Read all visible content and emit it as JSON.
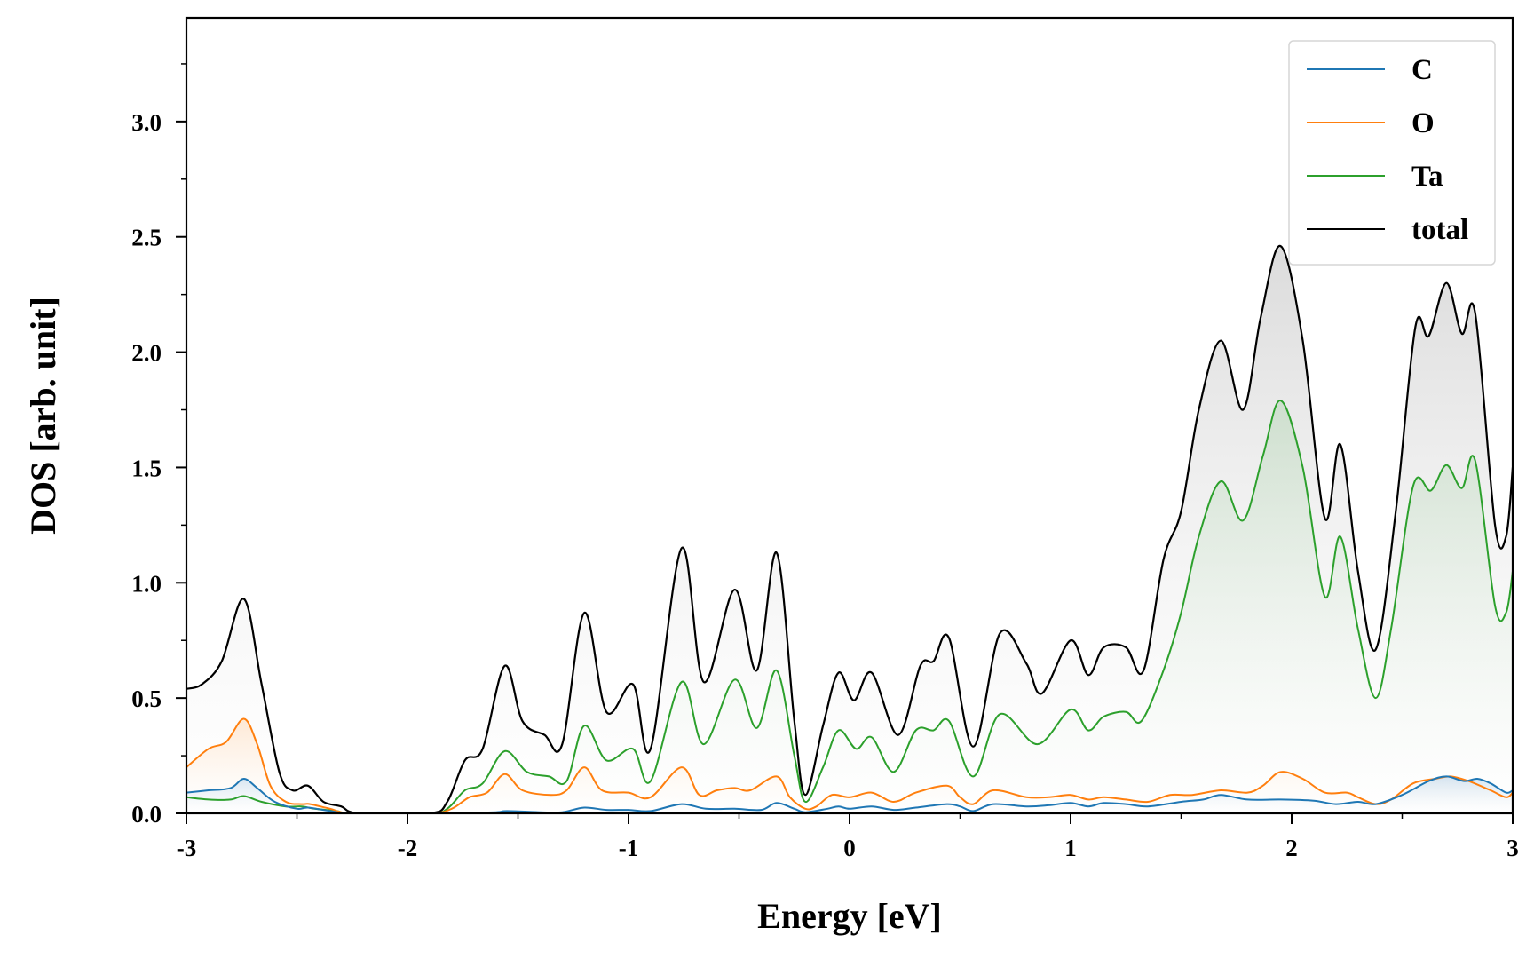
{
  "chart_data": {
    "type": "line",
    "title": "",
    "xlabel": "Energy [eV]",
    "ylabel": "DOS [arb. unit]",
    "xlim": [
      -3,
      3
    ],
    "ylim": [
      0,
      3.45
    ],
    "x_ticks": [
      -3,
      -2,
      -1,
      0,
      1,
      2,
      3
    ],
    "x_tick_labels": [
      "-3",
      "-2",
      "-1",
      "0",
      "1",
      "2",
      "3"
    ],
    "y_ticks": [
      0.0,
      0.5,
      1.0,
      1.5,
      2.0,
      2.5,
      3.0
    ],
    "y_tick_labels": [
      "0.0",
      "0.5",
      "1.0",
      "1.5",
      "2.0",
      "2.5",
      "3.0"
    ],
    "grid": false,
    "legend_position": "top-right",
    "series": [
      {
        "name": "C",
        "color": "#1f77b4",
        "points": [
          [
            -3.0,
            0.09
          ],
          [
            -2.9,
            0.1
          ],
          [
            -2.8,
            0.11
          ],
          [
            -2.74,
            0.15
          ],
          [
            -2.68,
            0.11
          ],
          [
            -2.6,
            0.05
          ],
          [
            -2.5,
            0.02
          ],
          [
            -2.45,
            0.025
          ],
          [
            -2.35,
            0.01
          ],
          [
            -2.25,
            0.0
          ],
          [
            -1.9,
            0.0
          ],
          [
            -1.8,
            0.0
          ],
          [
            -1.6,
            0.005
          ],
          [
            -1.55,
            0.01
          ],
          [
            -1.4,
            0.005
          ],
          [
            -1.3,
            0.005
          ],
          [
            -1.2,
            0.025
          ],
          [
            -1.1,
            0.015
          ],
          [
            -1.0,
            0.015
          ],
          [
            -0.9,
            0.01
          ],
          [
            -0.76,
            0.04
          ],
          [
            -0.65,
            0.02
          ],
          [
            -0.52,
            0.02
          ],
          [
            -0.4,
            0.015
          ],
          [
            -0.33,
            0.045
          ],
          [
            -0.25,
            0.02
          ],
          [
            -0.2,
            0.005
          ],
          [
            -0.1,
            0.02
          ],
          [
            -0.05,
            0.03
          ],
          [
            0.0,
            0.02
          ],
          [
            0.1,
            0.03
          ],
          [
            0.2,
            0.015
          ],
          [
            0.3,
            0.025
          ],
          [
            0.44,
            0.04
          ],
          [
            0.5,
            0.03
          ],
          [
            0.56,
            0.01
          ],
          [
            0.65,
            0.04
          ],
          [
            0.8,
            0.03
          ],
          [
            0.9,
            0.035
          ],
          [
            1.0,
            0.045
          ],
          [
            1.08,
            0.03
          ],
          [
            1.15,
            0.045
          ],
          [
            1.25,
            0.04
          ],
          [
            1.35,
            0.03
          ],
          [
            1.5,
            0.05
          ],
          [
            1.6,
            0.06
          ],
          [
            1.68,
            0.08
          ],
          [
            1.8,
            0.06
          ],
          [
            1.95,
            0.06
          ],
          [
            2.1,
            0.055
          ],
          [
            2.2,
            0.04
          ],
          [
            2.3,
            0.05
          ],
          [
            2.38,
            0.04
          ],
          [
            2.5,
            0.08
          ],
          [
            2.62,
            0.14
          ],
          [
            2.7,
            0.16
          ],
          [
            2.78,
            0.14
          ],
          [
            2.84,
            0.15
          ],
          [
            2.9,
            0.13
          ],
          [
            2.97,
            0.09
          ],
          [
            3.0,
            0.1
          ]
        ]
      },
      {
        "name": "O",
        "color": "#ff7f0e",
        "points": [
          [
            -3.0,
            0.2
          ],
          [
            -2.9,
            0.28
          ],
          [
            -2.82,
            0.31
          ],
          [
            -2.74,
            0.41
          ],
          [
            -2.68,
            0.3
          ],
          [
            -2.62,
            0.12
          ],
          [
            -2.55,
            0.05
          ],
          [
            -2.48,
            0.04
          ],
          [
            -2.44,
            0.04
          ],
          [
            -2.35,
            0.02
          ],
          [
            -2.25,
            0.0
          ],
          [
            -1.9,
            0.0
          ],
          [
            -1.8,
            0.02
          ],
          [
            -1.72,
            0.07
          ],
          [
            -1.64,
            0.09
          ],
          [
            -1.56,
            0.17
          ],
          [
            -1.48,
            0.1
          ],
          [
            -1.35,
            0.08
          ],
          [
            -1.28,
            0.1
          ],
          [
            -1.2,
            0.2
          ],
          [
            -1.12,
            0.1
          ],
          [
            -1.0,
            0.09
          ],
          [
            -0.9,
            0.07
          ],
          [
            -0.76,
            0.2
          ],
          [
            -0.68,
            0.08
          ],
          [
            -0.6,
            0.1
          ],
          [
            -0.52,
            0.11
          ],
          [
            -0.45,
            0.1
          ],
          [
            -0.33,
            0.16
          ],
          [
            -0.27,
            0.07
          ],
          [
            -0.2,
            0.02
          ],
          [
            -0.15,
            0.03
          ],
          [
            -0.08,
            0.08
          ],
          [
            0.0,
            0.07
          ],
          [
            0.1,
            0.09
          ],
          [
            0.2,
            0.05
          ],
          [
            0.3,
            0.09
          ],
          [
            0.44,
            0.12
          ],
          [
            0.5,
            0.07
          ],
          [
            0.56,
            0.04
          ],
          [
            0.65,
            0.1
          ],
          [
            0.8,
            0.07
          ],
          [
            0.9,
            0.07
          ],
          [
            1.0,
            0.08
          ],
          [
            1.08,
            0.06
          ],
          [
            1.15,
            0.07
          ],
          [
            1.25,
            0.06
          ],
          [
            1.35,
            0.05
          ],
          [
            1.45,
            0.08
          ],
          [
            1.55,
            0.08
          ],
          [
            1.68,
            0.1
          ],
          [
            1.8,
            0.09
          ],
          [
            1.87,
            0.12
          ],
          [
            1.95,
            0.18
          ],
          [
            2.05,
            0.15
          ],
          [
            2.15,
            0.09
          ],
          [
            2.25,
            0.09
          ],
          [
            2.3,
            0.07
          ],
          [
            2.38,
            0.04
          ],
          [
            2.45,
            0.06
          ],
          [
            2.55,
            0.13
          ],
          [
            2.65,
            0.15
          ],
          [
            2.72,
            0.16
          ],
          [
            2.8,
            0.14
          ],
          [
            2.9,
            0.1
          ],
          [
            2.97,
            0.07
          ],
          [
            3.0,
            0.09
          ]
        ]
      },
      {
        "name": "Ta",
        "color": "#2ca02c",
        "points": [
          [
            -3.0,
            0.07
          ],
          [
            -2.9,
            0.06
          ],
          [
            -2.8,
            0.06
          ],
          [
            -2.74,
            0.075
          ],
          [
            -2.66,
            0.05
          ],
          [
            -2.55,
            0.03
          ],
          [
            -2.48,
            0.03
          ],
          [
            -2.42,
            0.02
          ],
          [
            -2.32,
            0.01
          ],
          [
            -2.25,
            0.0
          ],
          [
            -1.9,
            0.0
          ],
          [
            -1.82,
            0.02
          ],
          [
            -1.74,
            0.1
          ],
          [
            -1.66,
            0.13
          ],
          [
            -1.56,
            0.27
          ],
          [
            -1.46,
            0.18
          ],
          [
            -1.36,
            0.16
          ],
          [
            -1.28,
            0.14
          ],
          [
            -1.2,
            0.38
          ],
          [
            -1.1,
            0.23
          ],
          [
            -0.98,
            0.28
          ],
          [
            -0.9,
            0.14
          ],
          [
            -0.76,
            0.57
          ],
          [
            -0.66,
            0.3
          ],
          [
            -0.52,
            0.58
          ],
          [
            -0.42,
            0.37
          ],
          [
            -0.33,
            0.62
          ],
          [
            -0.25,
            0.25
          ],
          [
            -0.2,
            0.05
          ],
          [
            -0.12,
            0.2
          ],
          [
            -0.05,
            0.36
          ],
          [
            0.03,
            0.28
          ],
          [
            0.1,
            0.33
          ],
          [
            0.2,
            0.18
          ],
          [
            0.3,
            0.36
          ],
          [
            0.38,
            0.36
          ],
          [
            0.45,
            0.4
          ],
          [
            0.56,
            0.16
          ],
          [
            0.68,
            0.43
          ],
          [
            0.85,
            0.3
          ],
          [
            1.0,
            0.45
          ],
          [
            1.08,
            0.36
          ],
          [
            1.15,
            0.42
          ],
          [
            1.25,
            0.44
          ],
          [
            1.32,
            0.4
          ],
          [
            1.42,
            0.62
          ],
          [
            1.5,
            0.87
          ],
          [
            1.58,
            1.2
          ],
          [
            1.68,
            1.44
          ],
          [
            1.78,
            1.27
          ],
          [
            1.87,
            1.55
          ],
          [
            1.95,
            1.79
          ],
          [
            2.05,
            1.5
          ],
          [
            2.15,
            0.94
          ],
          [
            2.22,
            1.2
          ],
          [
            2.3,
            0.8
          ],
          [
            2.38,
            0.5
          ],
          [
            2.45,
            0.8
          ],
          [
            2.55,
            1.42
          ],
          [
            2.63,
            1.4
          ],
          [
            2.7,
            1.51
          ],
          [
            2.77,
            1.41
          ],
          [
            2.83,
            1.53
          ],
          [
            2.92,
            0.9
          ],
          [
            2.97,
            0.87
          ],
          [
            3.0,
            1.05
          ]
        ]
      },
      {
        "name": "total",
        "color": "#000000",
        "points": [
          [
            -3.0,
            0.54
          ],
          [
            -2.93,
            0.56
          ],
          [
            -2.84,
            0.66
          ],
          [
            -2.74,
            0.93
          ],
          [
            -2.66,
            0.56
          ],
          [
            -2.58,
            0.18
          ],
          [
            -2.52,
            0.1
          ],
          [
            -2.45,
            0.12
          ],
          [
            -2.38,
            0.05
          ],
          [
            -2.3,
            0.03
          ],
          [
            -2.22,
            0.0
          ],
          [
            -1.9,
            0.0
          ],
          [
            -1.82,
            0.05
          ],
          [
            -1.74,
            0.23
          ],
          [
            -1.66,
            0.28
          ],
          [
            -1.56,
            0.64
          ],
          [
            -1.48,
            0.4
          ],
          [
            -1.38,
            0.34
          ],
          [
            -1.3,
            0.3
          ],
          [
            -1.2,
            0.87
          ],
          [
            -1.1,
            0.44
          ],
          [
            -0.98,
            0.56
          ],
          [
            -0.9,
            0.28
          ],
          [
            -0.76,
            1.15
          ],
          [
            -0.66,
            0.57
          ],
          [
            -0.52,
            0.97
          ],
          [
            -0.42,
            0.62
          ],
          [
            -0.33,
            1.13
          ],
          [
            -0.25,
            0.4
          ],
          [
            -0.2,
            0.08
          ],
          [
            -0.12,
            0.38
          ],
          [
            -0.05,
            0.61
          ],
          [
            0.02,
            0.49
          ],
          [
            0.1,
            0.61
          ],
          [
            0.22,
            0.34
          ],
          [
            0.32,
            0.64
          ],
          [
            0.38,
            0.66
          ],
          [
            0.45,
            0.76
          ],
          [
            0.56,
            0.29
          ],
          [
            0.68,
            0.78
          ],
          [
            0.8,
            0.65
          ],
          [
            0.87,
            0.52
          ],
          [
            1.0,
            0.75
          ],
          [
            1.08,
            0.6
          ],
          [
            1.15,
            0.72
          ],
          [
            1.25,
            0.72
          ],
          [
            1.33,
            0.62
          ],
          [
            1.42,
            1.1
          ],
          [
            1.5,
            1.31
          ],
          [
            1.58,
            1.75
          ],
          [
            1.68,
            2.05
          ],
          [
            1.78,
            1.75
          ],
          [
            1.86,
            2.15
          ],
          [
            1.95,
            2.46
          ],
          [
            2.05,
            2.05
          ],
          [
            2.15,
            1.28
          ],
          [
            2.22,
            1.6
          ],
          [
            2.3,
            1.05
          ],
          [
            2.38,
            0.71
          ],
          [
            2.47,
            1.3
          ],
          [
            2.56,
            2.11
          ],
          [
            2.62,
            2.07
          ],
          [
            2.7,
            2.3
          ],
          [
            2.77,
            2.08
          ],
          [
            2.83,
            2.17
          ],
          [
            2.92,
            1.25
          ],
          [
            2.97,
            1.2
          ],
          [
            3.0,
            1.5
          ]
        ]
      }
    ]
  }
}
